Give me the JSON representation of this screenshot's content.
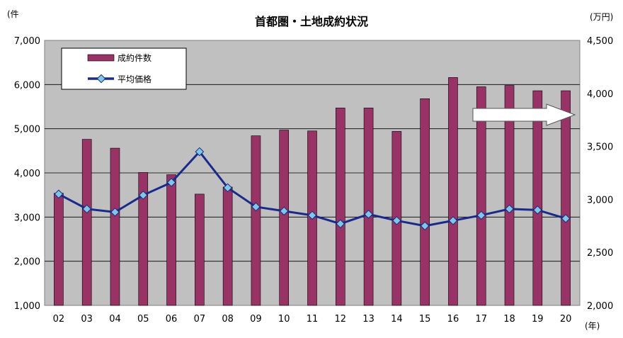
{
  "chart_data": {
    "type": "bar",
    "title": "首都圏・土地成約状況",
    "left_unit": "(件",
    "right_unit": "(万円)",
    "x_unit": "(年)",
    "categories": [
      "02",
      "03",
      "04",
      "05",
      "06",
      "07",
      "08",
      "09",
      "10",
      "11",
      "12",
      "13",
      "14",
      "15",
      "16",
      "17",
      "18",
      "19",
      "20"
    ],
    "series": [
      {
        "name": "成約件数",
        "type": "bar",
        "axis": "left",
        "color": "#993366",
        "values": [
          3540,
          4760,
          4560,
          4010,
          3960,
          3520,
          3680,
          4840,
          4970,
          4950,
          5470,
          5470,
          4940,
          5680,
          6160,
          5950,
          5980,
          5860,
          5860
        ]
      },
      {
        "name": "平均価格",
        "type": "line",
        "axis": "right",
        "color": "#1a2a8a",
        "marker_color": "#7ec8e3",
        "values": [
          3050,
          2910,
          2880,
          3040,
          3160,
          3450,
          3110,
          2930,
          2890,
          2850,
          2770,
          2860,
          2800,
          2750,
          2800,
          2850,
          2910,
          2900,
          2820
        ]
      }
    ],
    "left_axis": {
      "min": 1000,
      "max": 7000,
      "ticks": [
        "1,000",
        "2,000",
        "3,000",
        "4,000",
        "5,000",
        "6,000",
        "7,000"
      ]
    },
    "right_axis": {
      "min": 2000,
      "max": 4500,
      "ticks": [
        "2,000",
        "2,500",
        "3,000",
        "3,500",
        "4,000",
        "4,500"
      ]
    },
    "plot_background": "#c0c0c0",
    "grid": true,
    "legend_position": "top-left",
    "annotation": "white arrow pointing right along the 3,800 level near the right edge"
  }
}
